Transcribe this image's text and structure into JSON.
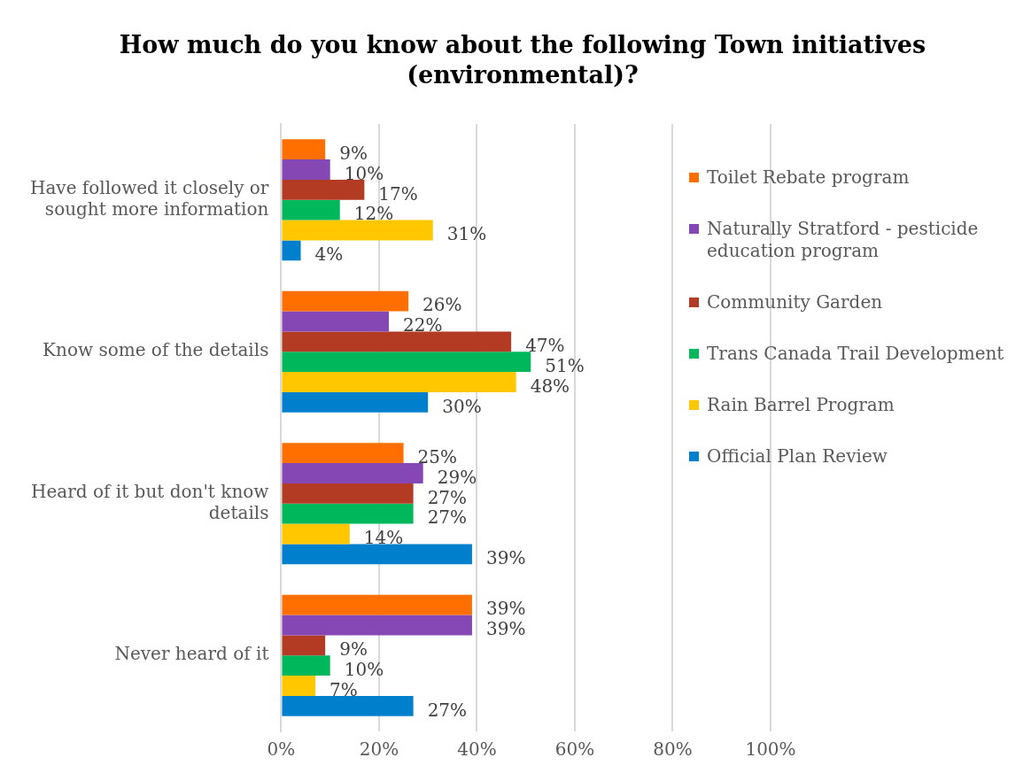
{
  "chart_data": {
    "type": "bar",
    "orientation": "horizontal",
    "title": "How much do you know about the following Town initiatives (environmental)?",
    "categories": [
      "Have followed it closely or sought more information",
      "Know some of the details",
      "Heard of it but don't know details",
      "Never heard of it"
    ],
    "series": [
      {
        "name": "Toilet Rebate program",
        "color": "#ff6f00",
        "values": [
          9,
          26,
          25,
          39
        ],
        "value_labels": [
          "9%",
          "26%",
          "25%",
          "39%"
        ]
      },
      {
        "name": "Naturally Stratford - pesticide education program",
        "color": "#8547b3",
        "values": [
          10,
          22,
          29,
          39
        ],
        "value_labels": [
          "10%",
          "22%",
          "29%",
          "39%"
        ]
      },
      {
        "name": "Community Garden",
        "color": "#b33b24",
        "values": [
          17,
          47,
          27,
          9
        ],
        "value_labels": [
          "17%",
          "47%",
          "27%",
          "9%"
        ]
      },
      {
        "name": "Trans Canada Trail Development",
        "color": "#00b85c",
        "values": [
          12,
          51,
          27,
          10
        ],
        "value_labels": [
          "12%",
          "51%",
          "27%",
          "10%"
        ]
      },
      {
        "name": "Rain Barrel Program",
        "color": "#ffc700",
        "values": [
          31,
          48,
          14,
          7
        ],
        "value_labels": [
          "31%",
          "48%",
          "14%",
          "7%"
        ]
      },
      {
        "name": "Official Plan Review",
        "color": "#0080cc",
        "values": [
          4,
          30,
          39,
          27
        ],
        "value_labels": [
          "4%",
          "30%",
          "39%",
          "27%"
        ]
      }
    ],
    "xlim": [
      0,
      100
    ],
    "xticks": [
      {
        "value": 0,
        "label": "0%"
      },
      {
        "value": 20,
        "label": "20%"
      },
      {
        "value": 40,
        "label": "40%"
      },
      {
        "value": 60,
        "label": "60%"
      },
      {
        "value": 80,
        "label": "80%"
      },
      {
        "value": 100,
        "label": "100%"
      }
    ],
    "grid": "x",
    "legend": "right"
  }
}
